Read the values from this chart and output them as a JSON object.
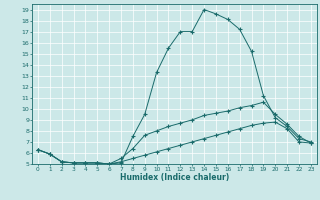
{
  "xlabel": "Humidex (Indice chaleur)",
  "bg_color": "#cce8e8",
  "grid_color": "#ffffff",
  "line_color": "#1a6b6b",
  "xlim": [
    -0.5,
    23.5
  ],
  "ylim": [
    5,
    19.5
  ],
  "xticks": [
    0,
    1,
    2,
    3,
    4,
    5,
    6,
    7,
    8,
    9,
    10,
    11,
    12,
    13,
    14,
    15,
    16,
    17,
    18,
    19,
    20,
    21,
    22,
    23
  ],
  "yticks": [
    5,
    6,
    7,
    8,
    9,
    10,
    11,
    12,
    13,
    14,
    15,
    16,
    17,
    18,
    19
  ],
  "line1_x": [
    0,
    1,
    2,
    3,
    4,
    5,
    6,
    7,
    8,
    9,
    10,
    11,
    12,
    13,
    14,
    15,
    16,
    17,
    18,
    19,
    20,
    21,
    22,
    23
  ],
  "line1_y": [
    6.3,
    5.9,
    5.2,
    5.1,
    5.1,
    5.1,
    5.0,
    5.1,
    7.5,
    9.5,
    13.3,
    15.5,
    17.0,
    17.0,
    19.0,
    18.6,
    18.1,
    17.2,
    15.2,
    11.2,
    9.2,
    8.4,
    7.3,
    7.0
  ],
  "line2_x": [
    0,
    1,
    2,
    3,
    4,
    5,
    6,
    7,
    8,
    9,
    10,
    11,
    12,
    13,
    14,
    15,
    16,
    17,
    18,
    19,
    20,
    21,
    22,
    23
  ],
  "line2_y": [
    6.3,
    5.9,
    5.2,
    5.1,
    5.1,
    5.1,
    5.0,
    5.5,
    6.4,
    7.6,
    8.0,
    8.4,
    8.7,
    9.0,
    9.4,
    9.6,
    9.8,
    10.1,
    10.3,
    10.6,
    9.5,
    8.6,
    7.5,
    6.9
  ],
  "line3_x": [
    0,
    1,
    2,
    3,
    4,
    5,
    6,
    7,
    8,
    9,
    10,
    11,
    12,
    13,
    14,
    15,
    16,
    17,
    18,
    19,
    20,
    21,
    22,
    23
  ],
  "line3_y": [
    6.3,
    5.9,
    5.2,
    5.1,
    5.1,
    5.1,
    5.0,
    5.2,
    5.5,
    5.8,
    6.1,
    6.4,
    6.7,
    7.0,
    7.3,
    7.6,
    7.9,
    8.2,
    8.5,
    8.7,
    8.8,
    8.2,
    7.0,
    6.9
  ]
}
